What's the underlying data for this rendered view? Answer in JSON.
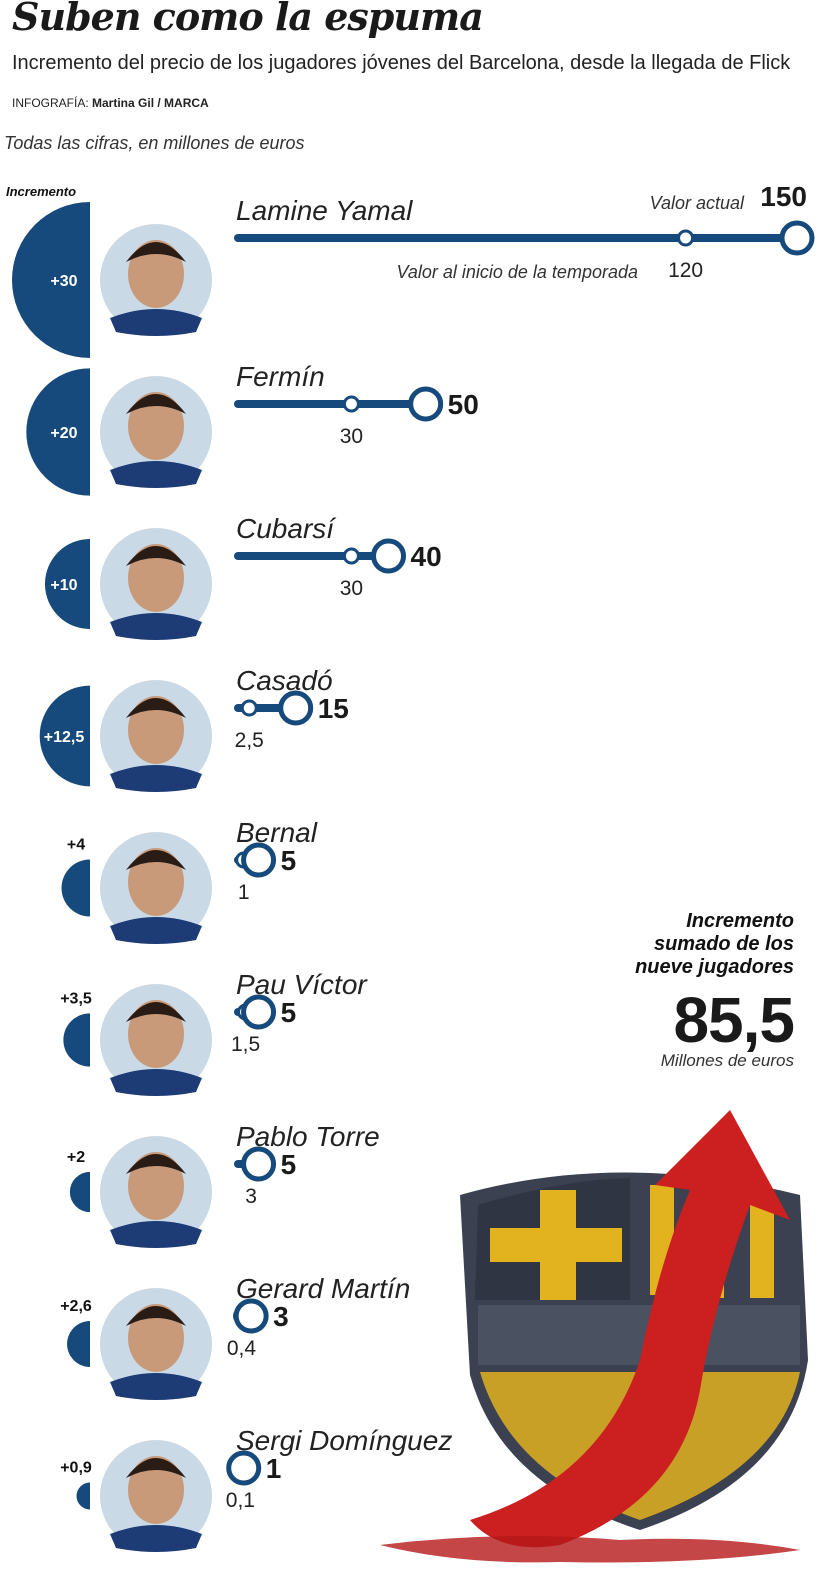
{
  "header": {
    "title": "Suben como la espuma",
    "subtitle": "Incremento del precio de los jugadores jóvenes del Barcelona, desde la llegada de Flick",
    "credit_prefix": "INFOGRAFÍA:",
    "credit_author": "Martina Gil / MARCA",
    "units_note": "Todas las cifras, en millones de euros",
    "increment_header": "Incremento"
  },
  "annotations": {
    "current_value": "Valor actual",
    "start_value": "Valor al inicio de la temporada"
  },
  "summary": {
    "label": "Incremento\nsumado de los\nnueve jugadores",
    "value": "85,5",
    "unit": "Millones de euros"
  },
  "colors": {
    "accent": "#174a7c",
    "text": "#1a1a1a",
    "photo_bg": "#c9d9e6",
    "crest_yellow": "#e3b21f",
    "crest_dark": "#3b4150",
    "arrow_red": "#cc1f1f"
  },
  "chart_data": {
    "type": "dot-range",
    "title": "Suben como la espuma",
    "units": "millones de euros",
    "players": [
      {
        "name": "Lamine Yamal",
        "start": 120,
        "current": 150,
        "increment": 30,
        "start_label": "120",
        "current_label": "150",
        "increment_label": "+30"
      },
      {
        "name": "Fermín",
        "start": 30,
        "current": 50,
        "increment": 20,
        "start_label": "30",
        "current_label": "50",
        "increment_label": "+20"
      },
      {
        "name": "Cubarsí",
        "start": 30,
        "current": 40,
        "increment": 10,
        "start_label": "30",
        "current_label": "40",
        "increment_label": "+10"
      },
      {
        "name": "Casadó",
        "start": 2.5,
        "current": 15,
        "increment": 12.5,
        "start_label": "2,5",
        "current_label": "15",
        "increment_label": "+12,5"
      },
      {
        "name": "Bernal",
        "start": 1,
        "current": 5,
        "increment": 4,
        "start_label": "1",
        "current_label": "5",
        "increment_label": "+4"
      },
      {
        "name": "Pau Víctor",
        "start": 1.5,
        "current": 5,
        "increment": 3.5,
        "start_label": "1,5",
        "current_label": "5",
        "increment_label": "+3,5"
      },
      {
        "name": "Pablo Torre",
        "start": 3,
        "current": 5,
        "increment": 2,
        "start_label": "3",
        "current_label": "5",
        "increment_label": "+2"
      },
      {
        "name": "Gerard Martín",
        "start": 0.4,
        "current": 3,
        "increment": 2.6,
        "start_label": "0,4",
        "current_label": "3",
        "increment_label": "+2,6"
      },
      {
        "name": "Sergi Domínguez",
        "start": 0.1,
        "current": 1,
        "increment": 0.9,
        "start_label": "0,1",
        "current_label": "1",
        "increment_label": "+0,9"
      }
    ],
    "total_increment": 85.5
  }
}
